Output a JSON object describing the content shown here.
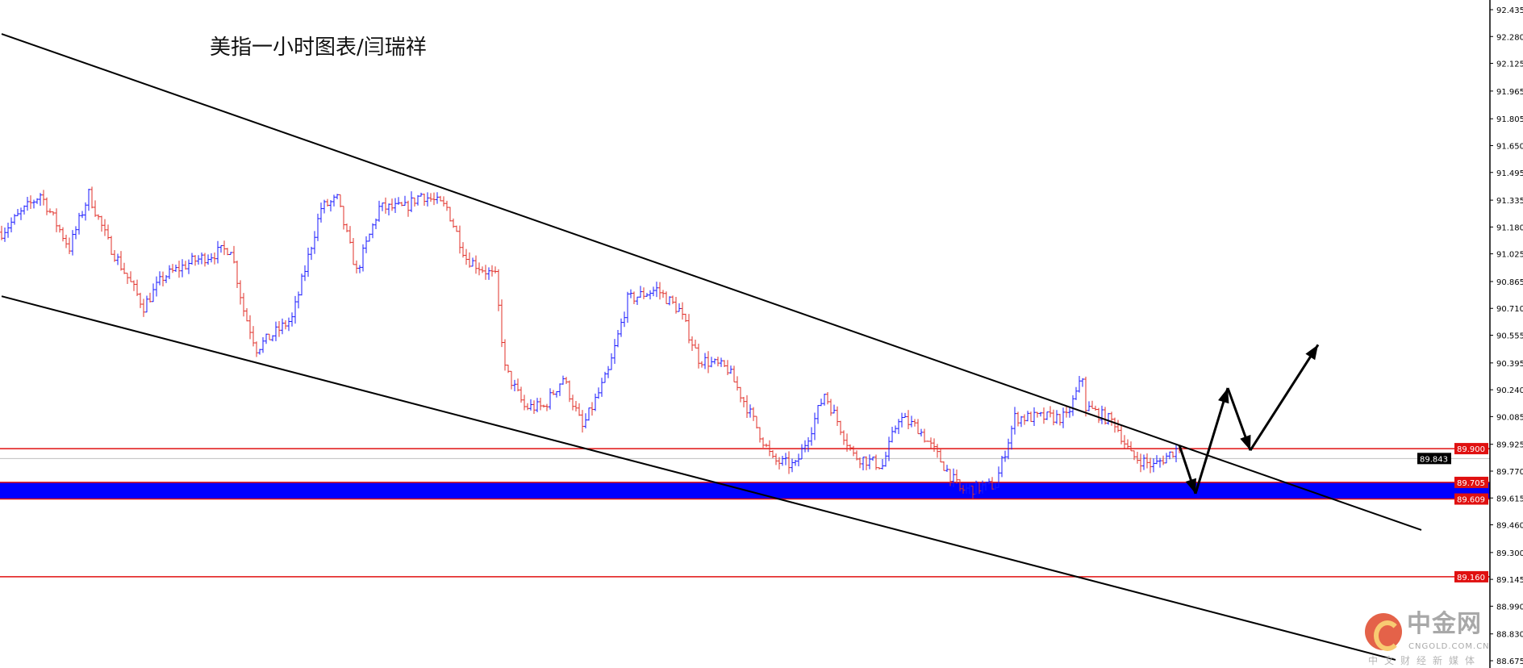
{
  "title": "美指一小时图表/闫瑞祥",
  "logo": {
    "name": "中金网",
    "url": "CNGOLD.COM.CN",
    "tagline": "中文财经新媒体"
  },
  "chart_data": {
    "type": "ohlc-bar",
    "title": "美指一小时图表/闫瑞祥",
    "ylim": [
      88.675,
      92.435
    ],
    "y_ticks": [
      "92.435",
      "92.280",
      "92.125",
      "91.965",
      "91.805",
      "91.650",
      "91.495",
      "91.335",
      "91.180",
      "91.025",
      "90.865",
      "90.710",
      "90.555",
      "90.395",
      "90.240",
      "90.085",
      "89.925",
      "89.770",
      "89.615",
      "89.460",
      "89.300",
      "89.145",
      "88.990",
      "88.830",
      "88.675"
    ],
    "grid": false,
    "bar_colors": {
      "up": "#1a1aff",
      "down": "#e0302a"
    },
    "close_path": [
      [
        0,
        91.15
      ],
      [
        12,
        91.37
      ],
      [
        21,
        91.06
      ],
      [
        27,
        91.37
      ],
      [
        33,
        91.09
      ],
      [
        44,
        90.72
      ],
      [
        50,
        90.89
      ],
      [
        59,
        90.98
      ],
      [
        71,
        91.06
      ],
      [
        75,
        90.7
      ],
      [
        79,
        90.48
      ],
      [
        90,
        90.65
      ],
      [
        99,
        91.29
      ],
      [
        104,
        91.34
      ],
      [
        110,
        90.92
      ],
      [
        117,
        91.29
      ],
      [
        125,
        91.29
      ],
      [
        130,
        91.37
      ],
      [
        138,
        91.29
      ],
      [
        144,
        91.0
      ],
      [
        153,
        90.89
      ],
      [
        156,
        90.36
      ],
      [
        162,
        90.14
      ],
      [
        168,
        90.14
      ],
      [
        174,
        90.31
      ],
      [
        180,
        90.02
      ],
      [
        188,
        90.34
      ],
      [
        194,
        90.76
      ],
      [
        203,
        90.82
      ],
      [
        210,
        90.7
      ],
      [
        216,
        90.42
      ],
      [
        225,
        90.36
      ],
      [
        231,
        90.14
      ],
      [
        239,
        89.83
      ],
      [
        246,
        89.8
      ],
      [
        251,
        90.02
      ],
      [
        255,
        90.22
      ],
      [
        264,
        89.86
      ],
      [
        273,
        89.8
      ],
      [
        278,
        90.08
      ],
      [
        284,
        90.02
      ],
      [
        290,
        89.86
      ],
      [
        297,
        89.66
      ],
      [
        308,
        89.69
      ],
      [
        314,
        90.08
      ],
      [
        321,
        90.08
      ],
      [
        330,
        90.08
      ],
      [
        335,
        90.31
      ],
      [
        336,
        90.14
      ],
      [
        345,
        90.05
      ],
      [
        350,
        89.86
      ],
      [
        357,
        89.8
      ],
      [
        365,
        89.91
      ]
    ],
    "current_price": {
      "value": 89.843,
      "label": "89.843",
      "color": "#000000"
    },
    "horizontal_levels": [
      {
        "value": 89.9,
        "label": "89.900",
        "color": "#e01010"
      },
      {
        "value": 89.705,
        "label": "89.705",
        "color": "#e01010"
      },
      {
        "value": 89.609,
        "label": "89.609",
        "color": "#e01010"
      },
      {
        "value": 89.16,
        "label": "89.160",
        "color": "#e01010"
      }
    ],
    "zone": {
      "from": 89.609,
      "to": 89.705,
      "color": "#0000ff"
    },
    "trend_lines": [
      {
        "from": [
          0,
          92.295
        ],
        "to": [
          440,
          89.43
        ]
      },
      {
        "from": [
          0,
          90.78
        ],
        "to": [
          432,
          88.68
        ]
      }
    ],
    "projection_arrows": [
      [
        365,
        89.92
      ],
      [
        370,
        89.64
      ],
      [
        380,
        90.25
      ],
      [
        387,
        89.89
      ],
      [
        408,
        90.5
      ]
    ]
  }
}
